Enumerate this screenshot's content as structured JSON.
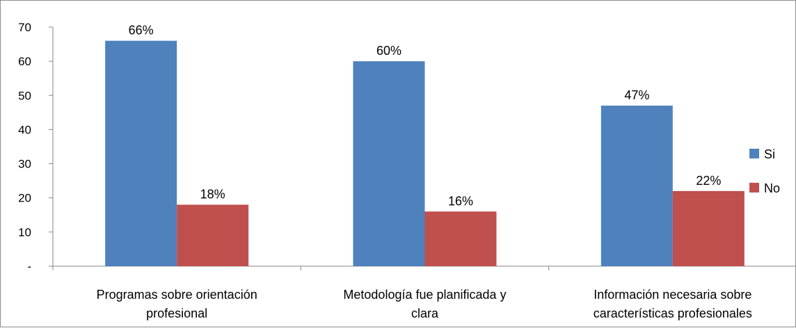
{
  "chart_data": {
    "type": "bar",
    "categories": [
      [
        "Programas sobre  orientación",
        "profesional"
      ],
      [
        "Metodología  fue planificada y",
        "clara"
      ],
      [
        "Información necesaria sobre",
        "características profesionales"
      ]
    ],
    "series": [
      {
        "name": "Si",
        "values": [
          66,
          60,
          47
        ],
        "labels": [
          "66%",
          "60%",
          "47%"
        ],
        "color": "#4f81bd"
      },
      {
        "name": "No",
        "values": [
          18,
          16,
          22
        ],
        "labels": [
          "18%",
          "16%",
          "22%"
        ],
        "color": "#c0504d"
      }
    ],
    "y_ticks": [
      "-",
      "10",
      "20",
      "30",
      "40",
      "50",
      "60",
      "70"
    ],
    "ylim": [
      0,
      70
    ],
    "grid": false,
    "legend_position": "right"
  }
}
